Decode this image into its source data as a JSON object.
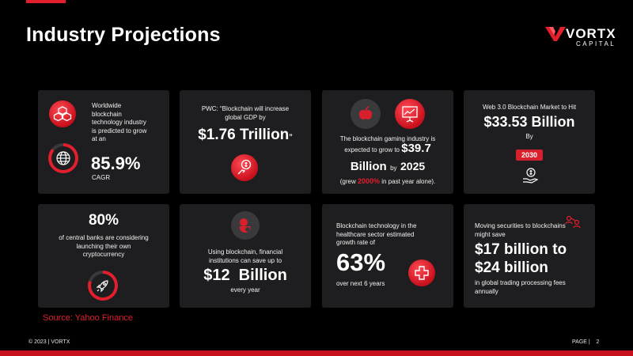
{
  "header": {
    "title": "Industry Projections",
    "logo": {
      "word": "VORTX",
      "sub": "CAPITAL"
    }
  },
  "colors": {
    "accent": "#e31e2d",
    "card": "#1e1e20",
    "background": "#000000"
  },
  "cards": {
    "c1": {
      "text_lines": [
        "Worldwide",
        "blockchain",
        "technology industry",
        "is predicted to grow",
        "at an"
      ],
      "value": "85.9%",
      "suffix": "CAGR",
      "icons": [
        "blocks-icon",
        "globe-icon"
      ]
    },
    "c2": {
      "text_lines": [
        "PWC: “Blockchain  will increase",
        "global GDP by"
      ],
      "value": "$1.76 Trillion",
      "value_tail": "”",
      "icon": "money-hand-icon"
    },
    "c3": {
      "text_lines": [
        "The blockchain  gaming industry is",
        "expected to grow  to"
      ],
      "value_a": "$39.7",
      "value_b": "Billion",
      "by": "by",
      "year": "2025",
      "note_pre": "(grew",
      "note_pct": "2000%",
      "note_post": "in past year alone).",
      "icons": [
        "apple-icon",
        "presentation-chart-icon"
      ]
    },
    "c4": {
      "heading": "Web 3.0 Blockchain Market to Hit",
      "value": "$33.53 Billion",
      "by": "By",
      "year": "2030",
      "icon": "dollar-hand-icon"
    },
    "c5": {
      "value": "80%",
      "text_lines": [
        "of central banks are considering",
        "launching their own",
        "cryptocurrency"
      ],
      "icon": "rocket-icon"
    },
    "c6": {
      "text_lines": [
        "Using blockchain,  financial",
        "institutions  can save up to"
      ],
      "value": "$12  Billion",
      "suffix": "every year",
      "icon": "piggy-bank-icon"
    },
    "c7": {
      "text_lines": [
        "Blockchain technology  in the",
        "healthcare sector  estimated",
        "growth rate of"
      ],
      "value": "63%",
      "suffix": "over next 6 years",
      "icon": "medical-cross-icon"
    },
    "c8": {
      "text_lines": [
        "Moving securities to blockchains",
        "might save"
      ],
      "value_a": "$17 billion to",
      "value_b": "$24 billion",
      "suffix_lines": [
        "in global trading processing  fees",
        "annually"
      ],
      "icon": "people-network-icon"
    }
  },
  "source": "Source: Yahoo Finance",
  "footer": {
    "left": "© 2023  |  VORTX",
    "right": "PAGE |    2"
  }
}
